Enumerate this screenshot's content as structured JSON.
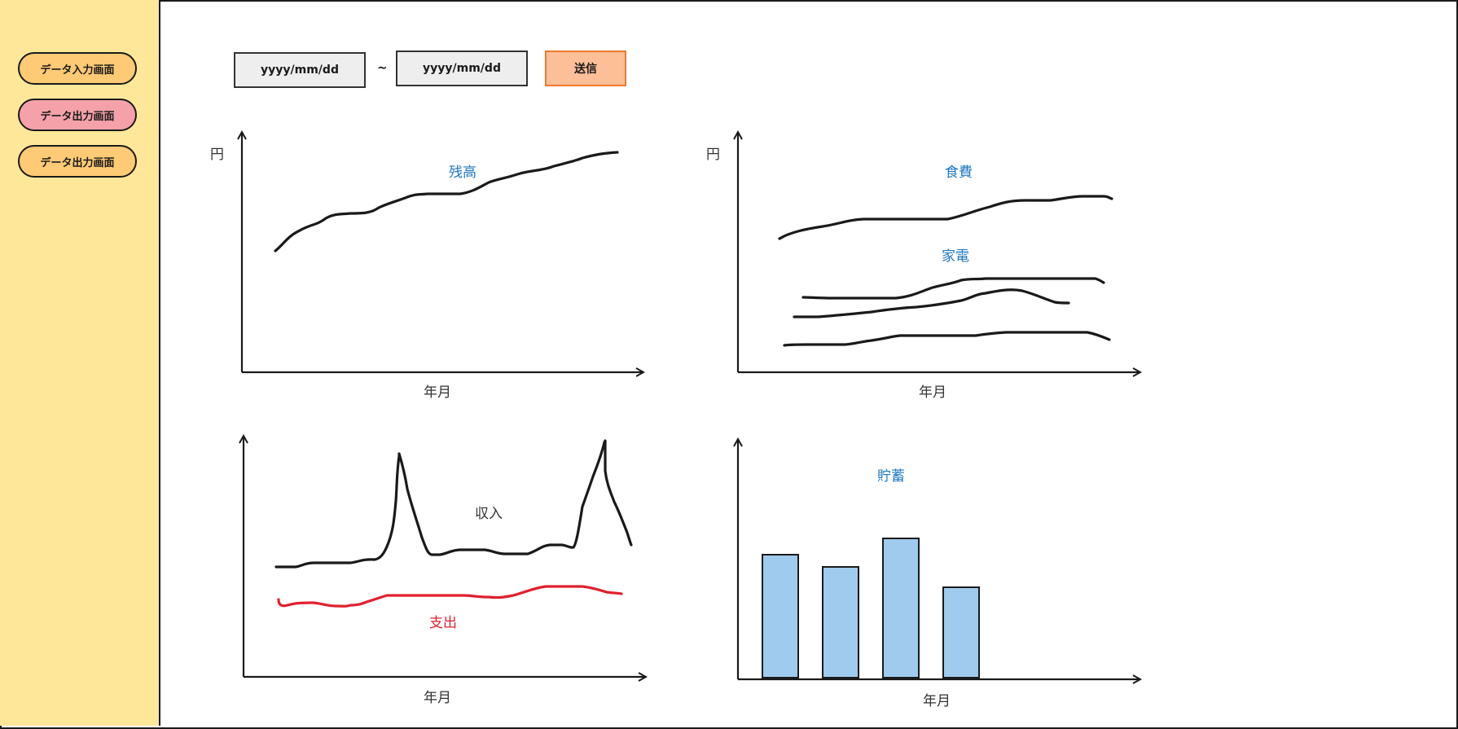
{
  "sidebar": {
    "items": [
      {
        "label": "データ入力画面",
        "color": "#ffca75"
      },
      {
        "label": "データ出力画面",
        "color": "#f5a1a9"
      },
      {
        "label": "データ出力画面",
        "color": "#ffca75"
      }
    ]
  },
  "filter": {
    "start_placeholder": "yyyy/mm/dd",
    "separator": "~",
    "end_placeholder": "yyyy/mm/dd",
    "submit_label": "送信"
  },
  "charts": {
    "balance": {
      "ylabel": "円",
      "xlabel": "年月",
      "series_label": "残高"
    },
    "food": {
      "ylabel": "円",
      "xlabel": "年月",
      "series_label_1": "食費",
      "series_label_2": "家電"
    },
    "income": {
      "xlabel": "年月",
      "income_label": "収入",
      "expense_label": "支出"
    },
    "savings": {
      "xlabel": "年月",
      "series_label": "貯蓄"
    }
  },
  "colors": {
    "label_blue": "#1f78c1",
    "expense_red": "#e0202f",
    "bar_fill": "#9fcbee"
  }
}
